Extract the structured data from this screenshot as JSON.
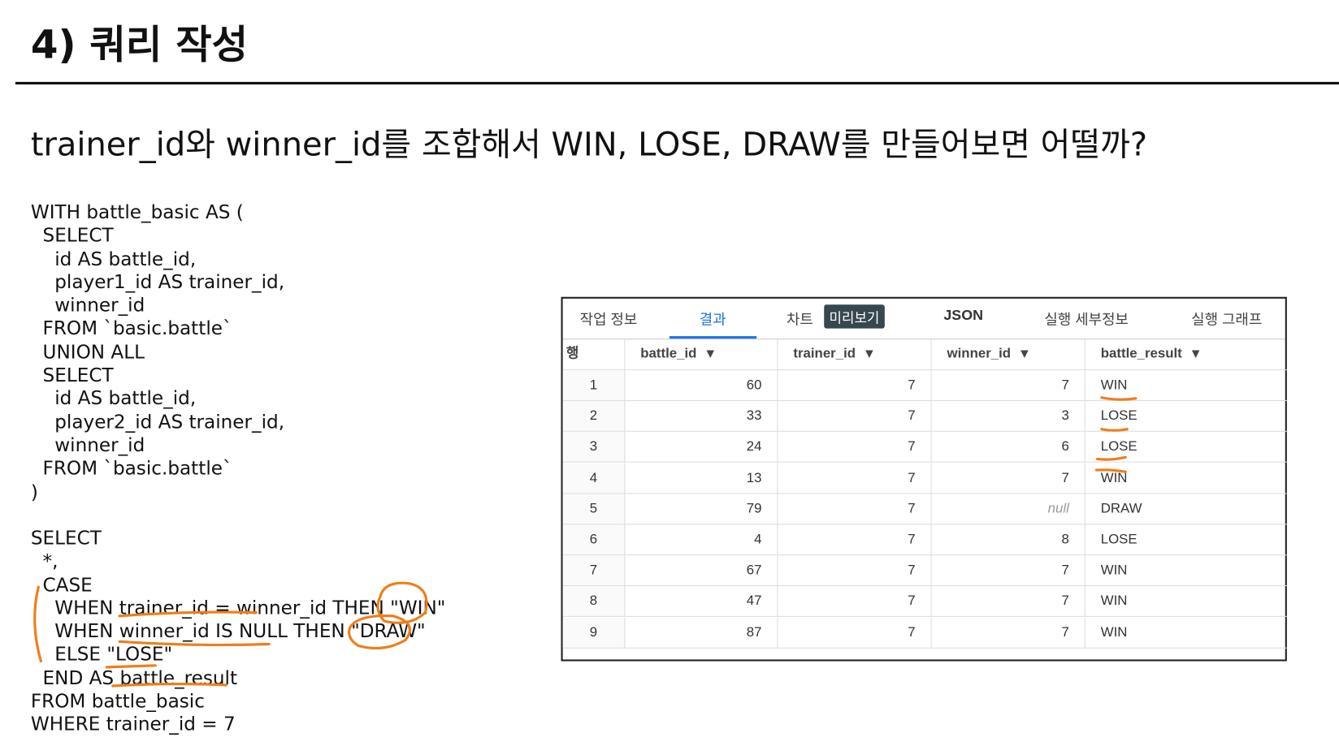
{
  "header": {
    "title": "4) 쿼리 작성"
  },
  "subtitle": "trainer_id와 winner_id를 조합해서 WIN, LOSE, DRAW를 만들어보면 어떨까?",
  "code": {
    "blocks": [
      [
        "WITH battle_basic AS (",
        "  SELECT",
        "    id AS battle_id,",
        "    player1_id AS trainer_id,",
        "    winner_id",
        "  FROM `basic.battle`",
        "  UNION ALL",
        "  SELECT",
        "    id AS battle_id,",
        "    player2_id AS trainer_id,",
        "    winner_id",
        "  FROM `basic.battle`",
        ")"
      ],
      [
        "SELECT",
        "  *,",
        "  CASE",
        "    WHEN trainer_id = winner_id THEN \"WIN\"",
        "    WHEN winner_id IS NULL THEN \"DRAW\"",
        "    ELSE \"LOSE\"",
        "  END AS battle_result",
        "FROM battle_basic",
        "WHERE trainer_id = 7"
      ]
    ]
  },
  "result_panel": {
    "tabs": [
      "작업 정보",
      "결과",
      "차트",
      "미리보기",
      "JSON",
      "실행 세부정보",
      "실행 그래프"
    ],
    "table": {
      "columns": [
        "행",
        "battle_id",
        "trainer_id",
        "winner_id",
        "battle_result"
      ],
      "rows": [
        [
          1,
          60,
          7,
          7,
          "WIN"
        ],
        [
          2,
          33,
          7,
          3,
          "LOSE"
        ],
        [
          3,
          24,
          7,
          6,
          "LOSE"
        ],
        [
          4,
          13,
          7,
          7,
          "WIN"
        ],
        [
          5,
          79,
          7,
          "null",
          "DRAW"
        ],
        [
          6,
          4,
          7,
          8,
          "LOSE"
        ],
        [
          7,
          67,
          7,
          7,
          "WIN"
        ],
        [
          8,
          47,
          7,
          7,
          "WIN"
        ],
        [
          9,
          87,
          7,
          7,
          "WIN"
        ]
      ]
    }
  }
}
